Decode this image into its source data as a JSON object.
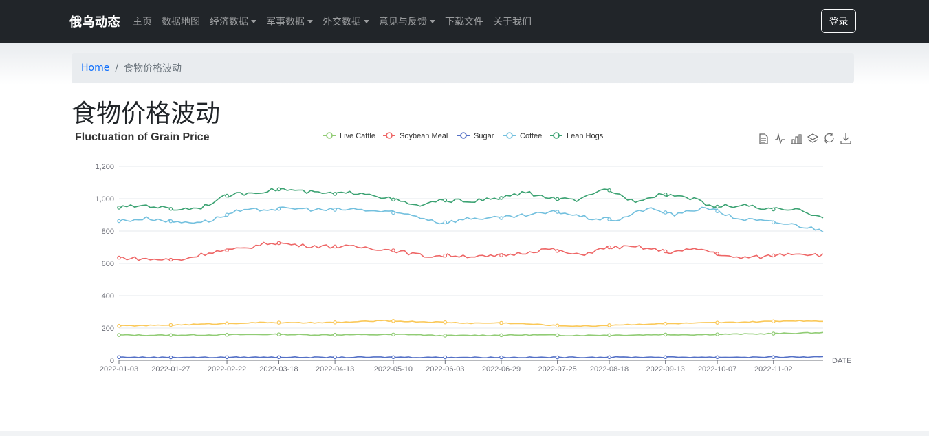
{
  "navbar": {
    "brand": "俄乌动态",
    "items": [
      {
        "label": "主页",
        "dropdown": false
      },
      {
        "label": "数据地图",
        "dropdown": false
      },
      {
        "label": "经济数据",
        "dropdown": true
      },
      {
        "label": "军事数据",
        "dropdown": true
      },
      {
        "label": "外交数据",
        "dropdown": true
      },
      {
        "label": "意见与反馈",
        "dropdown": true
      },
      {
        "label": "下载文件",
        "dropdown": false
      },
      {
        "label": "关于我们",
        "dropdown": false
      }
    ],
    "login_label": "登录"
  },
  "breadcrumb": {
    "home": "Home",
    "separator": "/",
    "current": "食物价格波动"
  },
  "page_title": "食物价格波动",
  "toolbox": [
    "data-view-icon",
    "line-chart-icon",
    "bar-chart-icon",
    "stack-icon",
    "restore-icon",
    "download-icon"
  ],
  "chart_data": {
    "type": "line",
    "title": "Fluctuation of Grain Price",
    "xlabel": "DATE",
    "ylabel": "",
    "ylim": [
      0,
      1200
    ],
    "yticks": [
      0,
      200,
      400,
      600,
      800,
      1000,
      1200
    ],
    "ytick_labels": [
      "0",
      "200",
      "400",
      "600",
      "800",
      "1,000",
      "1,200"
    ],
    "x_start": "2022-01-03",
    "x_end": "2022-11-25",
    "xtick_labels": [
      "2022-01-03",
      "2022-01-27",
      "2022-02-22",
      "2022-03-18",
      "2022-04-13",
      "2022-05-10",
      "2022-06-03",
      "2022-06-29",
      "2022-07-25",
      "2022-08-18",
      "2022-09-13",
      "2022-10-07",
      "2022-11-02"
    ],
    "legend_position": "top-center",
    "grid": true,
    "series": [
      {
        "name": "Live Cattle",
        "color": "#91cc75",
        "legend": true,
        "values": [
          157,
          156,
          157,
          158,
          160,
          161,
          158,
          159,
          159,
          161,
          153,
          155,
          156,
          158,
          155,
          156,
          157,
          160,
          159,
          162,
          164,
          168,
          172
        ]
      },
      {
        "name": "Soybean Meal",
        "color": "#ee6666",
        "legend": true,
        "values": [
          636,
          626,
          622,
          670,
          690,
          730,
          710,
          705,
          700,
          680,
          645,
          650,
          640,
          660,
          690,
          650,
          700,
          700,
          670,
          690,
          635,
          640,
          665,
          652
        ]
      },
      {
        "name": "Sugar",
        "color": "#5470c6",
        "legend": true,
        "values": [
          20,
          19,
          19,
          19,
          20,
          20,
          19,
          19,
          20,
          20,
          19,
          19,
          19,
          19,
          19,
          20,
          20,
          20,
          20,
          20,
          20,
          21,
          21
        ]
      },
      {
        "name": "Coffee",
        "color": "#73c0de",
        "legend": true,
        "values": [
          862,
          880,
          855,
          860,
          920,
          935,
          940,
          930,
          935,
          920,
          900,
          850,
          880,
          880,
          900,
          920,
          880,
          870,
          940,
          900,
          950,
          880,
          860,
          840,
          805
        ]
      },
      {
        "name": "Lean Hogs",
        "color": "#3ba272",
        "legend": true,
        "values": [
          945,
          960,
          935,
          945,
          1020,
          1040,
          1060,
          1040,
          1030,
          1040,
          1000,
          955,
          990,
          985,
          1000,
          1040,
          1000,
          990,
          1060,
          985,
          1030,
          1010,
          950,
          960,
          935,
          930,
          890
        ]
      },
      {
        "name": "",
        "color": "#fac858",
        "legend": false,
        "values": [
          214,
          216,
          220,
          225,
          230,
          235,
          232,
          233,
          238,
          245,
          240,
          236,
          230,
          232,
          225,
          215,
          212,
          220,
          225,
          228,
          232,
          235,
          240,
          245,
          243
        ]
      }
    ]
  }
}
